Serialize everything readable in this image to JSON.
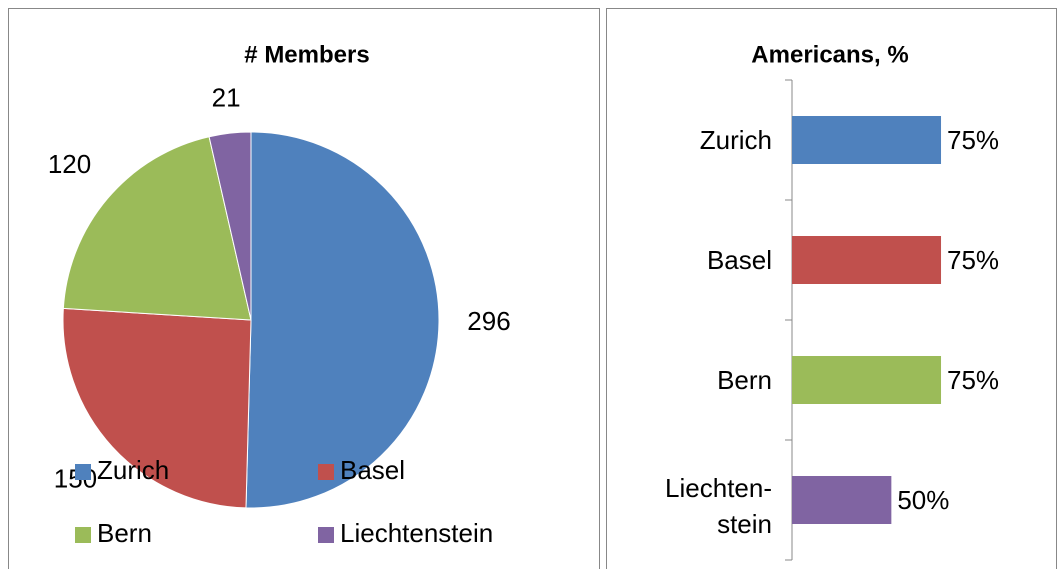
{
  "chart_data": [
    {
      "type": "pie",
      "title": "# Members",
      "categories": [
        "Zurich",
        "Basel",
        "Bern",
        "Liechtenstein"
      ],
      "values": [
        296,
        150,
        120,
        21
      ],
      "colors": [
        "#4f81bd",
        "#c0504d",
        "#9bbb59",
        "#8064a2"
      ],
      "legend": "bottom"
    },
    {
      "type": "hbar",
      "title": "Americans, %",
      "categories": [
        "Zurich",
        "Basel",
        "Bern",
        "Liechten-\nstein"
      ],
      "values": [
        75,
        75,
        75,
        50
      ],
      "value_labels": [
        "75%",
        "75%",
        "75%",
        "50%"
      ],
      "colors": [
        "#4f81bd",
        "#c0504d",
        "#9bbb59",
        "#8064a2"
      ],
      "xlim": [
        0,
        100
      ]
    }
  ]
}
